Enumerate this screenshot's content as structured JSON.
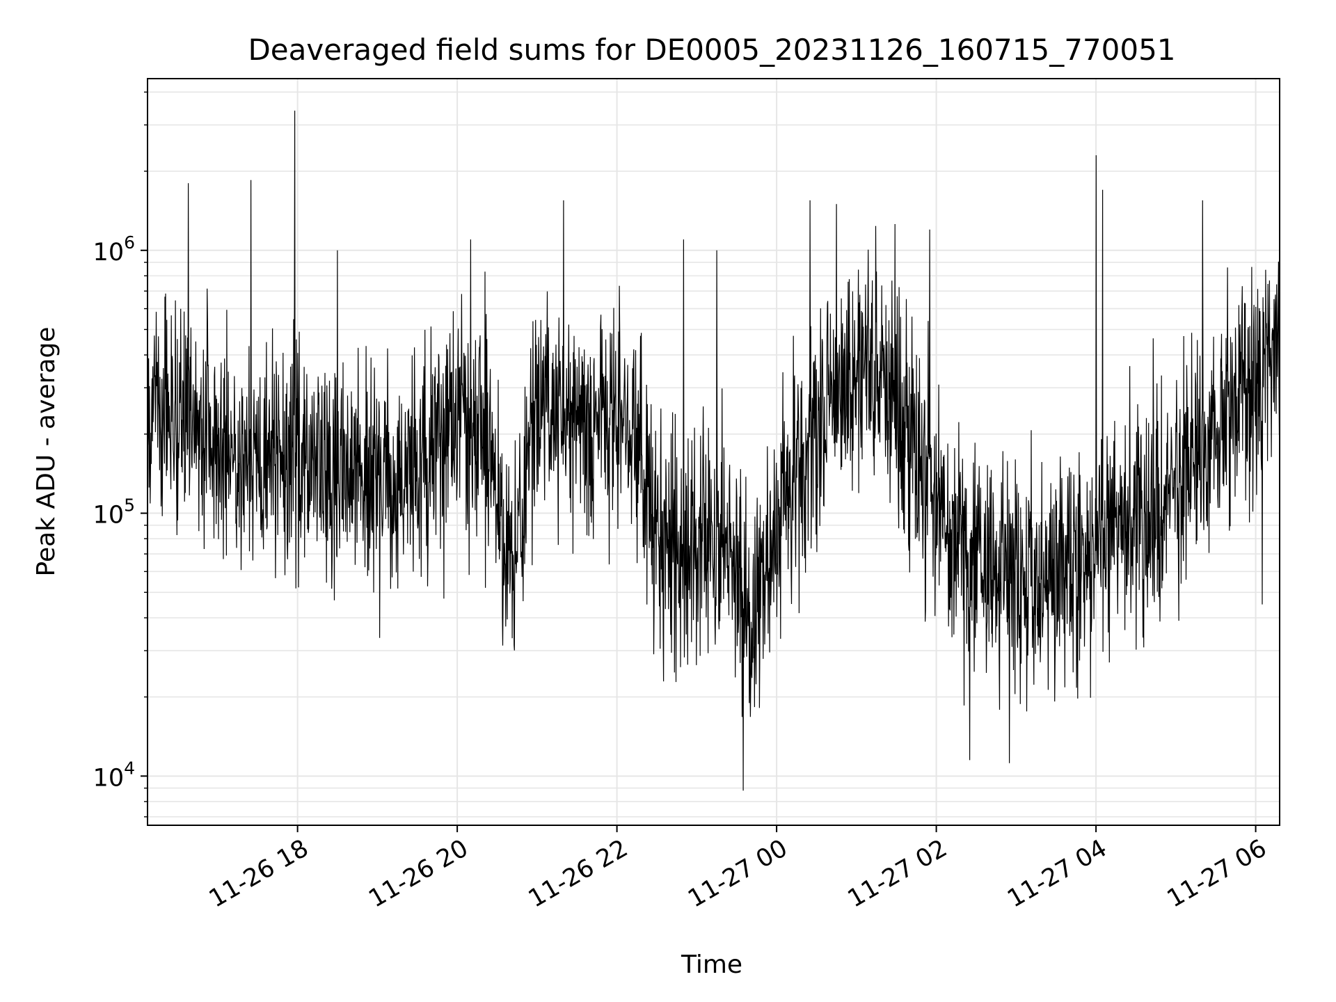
{
  "chart_data": {
    "type": "line",
    "title": "Deaveraged field sums for DE0005_20231126_160715_770051",
    "xlabel": "Time",
    "ylabel": "Peak ADU - average",
    "yscale": "log",
    "x_start": "2023-11-26T16:07:15",
    "x_end": "2023-11-27T06:18:00",
    "xlim": [
      "2023-11-26T16:07:15",
      "2023-11-27T06:18:00"
    ],
    "ylim": [
      6500,
      4500000
    ],
    "x_ticks": [
      {
        "value": "2023-11-26T18:00:00",
        "label": "11-26 18"
      },
      {
        "value": "2023-11-26T20:00:00",
        "label": "11-26 20"
      },
      {
        "value": "2023-11-26T22:00:00",
        "label": "11-26 22"
      },
      {
        "value": "2023-11-27T00:00:00",
        "label": "11-27 00"
      },
      {
        "value": "2023-11-27T02:00:00",
        "label": "11-27 02"
      },
      {
        "value": "2023-11-27T04:00:00",
        "label": "11-27 04"
      },
      {
        "value": "2023-11-27T06:00:00",
        "label": "11-27 06"
      }
    ],
    "y_ticks": [
      {
        "value": 10000,
        "base": "10",
        "exp": "4"
      },
      {
        "value": 100000,
        "base": "10",
        "exp": "5"
      },
      {
        "value": 1000000,
        "base": "10",
        "exp": "6"
      }
    ],
    "grid": true,
    "line_color": "#000000",
    "grid_color": "#e6e6e6",
    "trend": [
      {
        "t": "2023-11-26T16:07:15",
        "v": 280000
      },
      {
        "t": "2023-11-26T16:40:00",
        "v": 220000
      },
      {
        "t": "2023-11-26T17:20:00",
        "v": 150000
      },
      {
        "t": "2023-11-26T18:00:00",
        "v": 160000
      },
      {
        "t": "2023-11-26T18:40:00",
        "v": 140000
      },
      {
        "t": "2023-11-26T19:20:00",
        "v": 130000
      },
      {
        "t": "2023-11-26T20:00:00",
        "v": 250000
      },
      {
        "t": "2023-11-26T20:20:00",
        "v": 220000
      },
      {
        "t": "2023-11-26T20:40:00",
        "v": 60000
      },
      {
        "t": "2023-11-26T21:00:00",
        "v": 280000
      },
      {
        "t": "2023-11-26T21:40:00",
        "v": 200000
      },
      {
        "t": "2023-11-26T22:00:00",
        "v": 250000
      },
      {
        "t": "2023-11-26T22:40:00",
        "v": 70000
      },
      {
        "t": "2023-11-26T23:20:00",
        "v": 90000
      },
      {
        "t": "2023-11-26T23:40:00",
        "v": 35000
      },
      {
        "t": "2023-11-27T00:00:00",
        "v": 90000
      },
      {
        "t": "2023-11-27T00:40:00",
        "v": 280000
      },
      {
        "t": "2023-11-27T01:20:00",
        "v": 400000
      },
      {
        "t": "2023-11-27T01:40:00",
        "v": 200000
      },
      {
        "t": "2023-11-27T02:20:00",
        "v": 70000
      },
      {
        "t": "2023-11-27T03:00:00",
        "v": 60000
      },
      {
        "t": "2023-11-27T03:40:00",
        "v": 55000
      },
      {
        "t": "2023-11-27T04:00:00",
        "v": 75000
      },
      {
        "t": "2023-11-27T04:40:00",
        "v": 100000
      },
      {
        "t": "2023-11-27T05:20:00",
        "v": 170000
      },
      {
        "t": "2023-11-27T05:50:00",
        "v": 300000
      },
      {
        "t": "2023-11-27T06:18:00",
        "v": 500000
      }
    ],
    "spikes": [
      {
        "t": "2023-11-26T16:38:00",
        "v": 1800000
      },
      {
        "t": "2023-11-26T17:25:00",
        "v": 1850000
      },
      {
        "t": "2023-11-26T17:58:00",
        "v": 3400000
      },
      {
        "t": "2023-11-26T18:30:00",
        "v": 1000000
      },
      {
        "t": "2023-11-26T20:10:00",
        "v": 1100000
      },
      {
        "t": "2023-11-26T21:20:00",
        "v": 1550000
      },
      {
        "t": "2023-11-26T22:50:00",
        "v": 1100000
      },
      {
        "t": "2023-11-26T23:15:00",
        "v": 1000000
      },
      {
        "t": "2023-11-26T23:35:00",
        "v": 8800
      },
      {
        "t": "2023-11-27T00:25:00",
        "v": 1550000
      },
      {
        "t": "2023-11-27T00:45:00",
        "v": 1500000
      },
      {
        "t": "2023-11-27T01:55:00",
        "v": 1200000
      },
      {
        "t": "2023-11-27T02:25:00",
        "v": 11500
      },
      {
        "t": "2023-11-27T02:55:00",
        "v": 11200
      },
      {
        "t": "2023-11-27T04:00:00",
        "v": 2300000
      },
      {
        "t": "2023-11-27T04:05:00",
        "v": 1700000
      },
      {
        "t": "2023-11-27T05:20:00",
        "v": 1550000
      },
      {
        "t": "2023-11-27T06:05:00",
        "v": 45000
      }
    ]
  }
}
